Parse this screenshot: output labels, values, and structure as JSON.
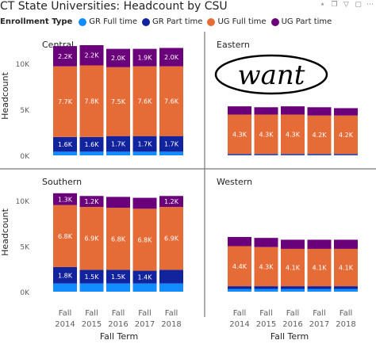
{
  "title": "CT State Universities: Headcount by CSU",
  "icons": [
    "pin-icon",
    "copy-icon",
    "filter-icon",
    "focus-icon",
    "more-icon"
  ],
  "legend": {
    "label": "Enrollment Type",
    "items": [
      {
        "name": "GR Full time",
        "color": "#118DFF"
      },
      {
        "name": "GR Part time",
        "color": "#12239E"
      },
      {
        "name": "UG Full time",
        "color": "#E66C37"
      },
      {
        "name": "UG Part time",
        "color": "#6B007B"
      }
    ]
  },
  "annotation": "want",
  "chart_data": {
    "type": "bar",
    "stacked": true,
    "ylabel": "Headcount",
    "xlabel": "Fall Term",
    "ylim": [
      0,
      12000
    ],
    "yticks": [
      "0K",
      "5K",
      "10K"
    ],
    "categories": [
      "Fall 2014",
      "Fall 2015",
      "Fall 2016",
      "Fall 2017",
      "Fall 2018"
    ],
    "panels": [
      {
        "name": "Central",
        "series": [
          {
            "name": "GR Full time",
            "values": [
              400,
              400,
              400,
              400,
              400
            ]
          },
          {
            "name": "GR Part time",
            "values": [
              1600,
              1600,
              1700,
              1700,
              1700
            ]
          },
          {
            "name": "UG Full time",
            "values": [
              7700,
              7800,
              7500,
              7600,
              7600
            ]
          },
          {
            "name": "UG Part time",
            "values": [
              2200,
              2200,
              2000,
              1900,
              2000
            ]
          }
        ],
        "labels": [
          [
            "1.6K",
            "7.7K",
            "2.2K"
          ],
          [
            "1.6K",
            "7.8K",
            "2.2K"
          ],
          [
            "1.7K",
            "7.5K",
            "2.0K"
          ],
          [
            "1.7K",
            "7.6K",
            "1.9K"
          ],
          [
            "1.7K",
            "7.6K",
            "2.0K"
          ]
        ]
      },
      {
        "name": "Eastern",
        "series": [
          {
            "name": "GR Full time",
            "values": [
              40,
              40,
              40,
              40,
              40
            ]
          },
          {
            "name": "GR Part time",
            "values": [
              100,
              100,
              100,
              100,
              100
            ]
          },
          {
            "name": "UG Full time",
            "values": [
              4300,
              4300,
              4300,
              4200,
              4200
            ]
          },
          {
            "name": "UG Part time",
            "values": [
              900,
              800,
              900,
              900,
              800
            ]
          }
        ],
        "labels": [
          [
            "",
            "4.3K",
            ""
          ],
          [
            "",
            "4.3K",
            ""
          ],
          [
            "",
            "4.3K",
            ""
          ],
          [
            "",
            "4.2K",
            ""
          ],
          [
            "",
            "4.2K",
            ""
          ]
        ]
      },
      {
        "name": "Southern",
        "series": [
          {
            "name": "GR Full time",
            "values": [
              900,
              900,
              900,
              900,
              900
            ]
          },
          {
            "name": "GR Part time",
            "values": [
              1800,
              1500,
              1500,
              1400,
              1500
            ]
          },
          {
            "name": "UG Full time",
            "values": [
              6800,
              6900,
              6800,
              6800,
              6900
            ]
          },
          {
            "name": "UG Part time",
            "values": [
              1300,
              1200,
              1200,
              1200,
              1200
            ]
          }
        ],
        "labels": [
          [
            "1.8K",
            "6.8K",
            "1.3K"
          ],
          [
            "1.5K",
            "6.9K",
            "1.2K"
          ],
          [
            "1.5K",
            "6.8K",
            ""
          ],
          [
            "1.4K",
            "6.8K",
            ""
          ],
          [
            "",
            "6.9K",
            "1.2K"
          ]
        ]
      },
      {
        "name": "Western",
        "series": [
          {
            "name": "GR Full time",
            "values": [
              300,
              300,
              300,
              300,
              300
            ]
          },
          {
            "name": "GR Part time",
            "values": [
              300,
              300,
              300,
              300,
              300
            ]
          },
          {
            "name": "UG Full time",
            "values": [
              4400,
              4300,
              4100,
              4100,
              4100
            ]
          },
          {
            "name": "UG Part time",
            "values": [
              1000,
              1000,
              1000,
              1000,
              1000
            ]
          }
        ],
        "labels": [
          [
            "",
            "4.4K",
            ""
          ],
          [
            "",
            "4.3K",
            ""
          ],
          [
            "",
            "4.1K",
            ""
          ],
          [
            "",
            "4.1K",
            ""
          ],
          [
            "",
            "4.1K",
            ""
          ]
        ]
      }
    ]
  }
}
